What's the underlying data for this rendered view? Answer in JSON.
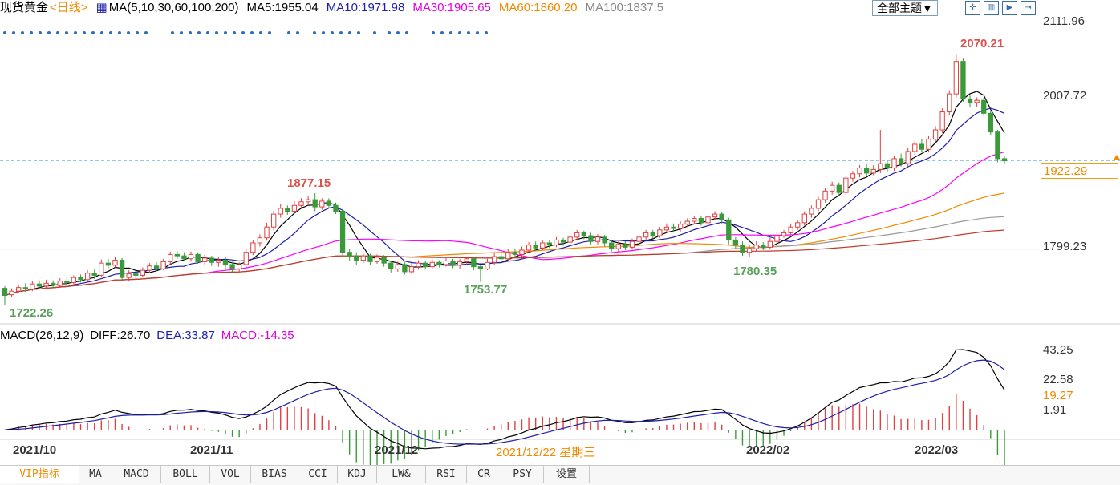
{
  "header": {
    "instrument": "现货黄金",
    "period": "<日线>",
    "ma_label": "MA(5,10,30,60,100,200)",
    "ma5": "MA5:1955.04",
    "ma10": "MA10:1971.98",
    "ma30": "MA30:1905.65",
    "ma60": "MA60:1860.20",
    "ma100": "MA100:1837.5",
    "theme_button": "全部主题▼"
  },
  "price_axis": {
    "ticks": [
      "2111.96",
      "2007.72",
      "1799.23"
    ],
    "current_price": "1922.29"
  },
  "annotations": {
    "high": "2070.21",
    "low1": "1722.26",
    "peak1": "1877.15",
    "low2": "1753.77",
    "low3": "1780.35"
  },
  "macd": {
    "title": "MACD(26,12,9)",
    "diff": "DIFF:26.70",
    "dea": "DEA:33.87",
    "macd": "MACD:-14.35",
    "ticks": [
      "43.25",
      "22.58",
      "1.91"
    ],
    "current": "19.27"
  },
  "x_axis": {
    "labels": [
      "2021/10",
      "2021/11",
      "2021/12",
      "2022/02",
      "2022/03"
    ],
    "cursor_date": "2021/12/22 星期三"
  },
  "tabs": [
    "VIP指标",
    "MA",
    "MACD",
    "BOLL",
    "VOL",
    "BIAS",
    "CCI",
    "KDJ",
    "LW&",
    "RSI",
    "CR",
    "PSY",
    "设置"
  ],
  "colors": {
    "up": "#e04040",
    "down": "#3a9a3a",
    "ma5": "#000000",
    "ma10": "#1e1eaa",
    "ma30": "#ff00ff",
    "ma60": "#f08a00",
    "ma100": "#999999",
    "ma200": "#c0392b",
    "dea": "#1e1eaa",
    "diff": "#000000"
  },
  "chart_data": {
    "type": "candlestick",
    "title": "现货黄金 <日线>",
    "series_ma": [
      {
        "name": "MA5",
        "last": 1955.04
      },
      {
        "name": "MA10",
        "last": 1971.98
      },
      {
        "name": "MA30",
        "last": 1905.65
      },
      {
        "name": "MA60",
        "last": 1860.2
      },
      {
        "name": "MA100",
        "last": 1837.5
      }
    ],
    "candles": [
      [
        1745,
        1735,
        1748,
        1722
      ],
      [
        1736,
        1741,
        1745,
        1733
      ],
      [
        1741,
        1746,
        1750,
        1738
      ],
      [
        1746,
        1744,
        1752,
        1740
      ],
      [
        1744,
        1751,
        1755,
        1741
      ],
      [
        1751,
        1748,
        1756,
        1745
      ],
      [
        1748,
        1752,
        1757,
        1744
      ],
      [
        1752,
        1749,
        1756,
        1745
      ],
      [
        1749,
        1755,
        1759,
        1746
      ],
      [
        1755,
        1753,
        1760,
        1749
      ],
      [
        1753,
        1760,
        1763,
        1750
      ],
      [
        1760,
        1757,
        1764,
        1753
      ],
      [
        1757,
        1766,
        1770,
        1754
      ],
      [
        1766,
        1763,
        1771,
        1758
      ],
      [
        1763,
        1780,
        1785,
        1760
      ],
      [
        1780,
        1777,
        1786,
        1772
      ],
      [
        1777,
        1784,
        1789,
        1774
      ],
      [
        1784,
        1760,
        1787,
        1757
      ],
      [
        1760,
        1765,
        1770,
        1755
      ],
      [
        1765,
        1763,
        1770,
        1759
      ],
      [
        1763,
        1770,
        1774,
        1760
      ],
      [
        1770,
        1776,
        1780,
        1766
      ],
      [
        1776,
        1772,
        1781,
        1769
      ],
      [
        1772,
        1782,
        1786,
        1770
      ],
      [
        1782,
        1792,
        1796,
        1778
      ],
      [
        1792,
        1790,
        1797,
        1786
      ],
      [
        1790,
        1786,
        1795,
        1783
      ],
      [
        1786,
        1792,
        1796,
        1782
      ],
      [
        1792,
        1782,
        1795,
        1779
      ],
      [
        1782,
        1787,
        1792,
        1777
      ],
      [
        1787,
        1781,
        1790,
        1776
      ],
      [
        1781,
        1784,
        1788,
        1775
      ],
      [
        1784,
        1778,
        1789,
        1771
      ],
      [
        1778,
        1772,
        1782,
        1766
      ],
      [
        1772,
        1778,
        1781,
        1766
      ],
      [
        1778,
        1795,
        1800,
        1774
      ],
      [
        1795,
        1808,
        1812,
        1791
      ],
      [
        1808,
        1815,
        1820,
        1803
      ],
      [
        1815,
        1830,
        1836,
        1811
      ],
      [
        1830,
        1848,
        1853,
        1825
      ],
      [
        1848,
        1856,
        1862,
        1843
      ],
      [
        1856,
        1852,
        1860,
        1847
      ],
      [
        1852,
        1860,
        1866,
        1849
      ],
      [
        1860,
        1865,
        1870,
        1855
      ],
      [
        1865,
        1868,
        1873,
        1860
      ],
      [
        1868,
        1858,
        1877,
        1852
      ],
      [
        1858,
        1866,
        1870,
        1854
      ],
      [
        1866,
        1860,
        1870,
        1856
      ],
      [
        1860,
        1852,
        1864,
        1848
      ],
      [
        1852,
        1795,
        1855,
        1790
      ],
      [
        1795,
        1790,
        1800,
        1783
      ],
      [
        1790,
        1784,
        1795,
        1778
      ],
      [
        1784,
        1790,
        1794,
        1780
      ],
      [
        1790,
        1782,
        1793,
        1778
      ],
      [
        1782,
        1788,
        1792,
        1779
      ],
      [
        1788,
        1780,
        1791,
        1775
      ],
      [
        1780,
        1772,
        1783,
        1767
      ],
      [
        1772,
        1778,
        1782,
        1768
      ],
      [
        1778,
        1768,
        1781,
        1764
      ],
      [
        1768,
        1775,
        1780,
        1765
      ],
      [
        1775,
        1780,
        1784,
        1771
      ],
      [
        1780,
        1775,
        1783,
        1771
      ],
      [
        1775,
        1781,
        1785,
        1772
      ],
      [
        1781,
        1778,
        1784,
        1774
      ],
      [
        1778,
        1783,
        1787,
        1775
      ],
      [
        1783,
        1777,
        1786,
        1773
      ],
      [
        1777,
        1782,
        1786,
        1772
      ],
      [
        1782,
        1786,
        1789,
        1778
      ],
      [
        1786,
        1775,
        1789,
        1770
      ],
      [
        1775,
        1772,
        1778,
        1754
      ],
      [
        1772,
        1781,
        1786,
        1770
      ],
      [
        1781,
        1789,
        1794,
        1778
      ],
      [
        1789,
        1786,
        1793,
        1782
      ],
      [
        1786,
        1795,
        1800,
        1783
      ],
      [
        1795,
        1792,
        1800,
        1788
      ],
      [
        1792,
        1798,
        1803,
        1789
      ],
      [
        1798,
        1805,
        1809,
        1794
      ],
      [
        1805,
        1801,
        1810,
        1797
      ],
      [
        1801,
        1808,
        1812,
        1798
      ],
      [
        1808,
        1805,
        1812,
        1801
      ],
      [
        1805,
        1812,
        1816,
        1802
      ],
      [
        1812,
        1809,
        1815,
        1804
      ],
      [
        1809,
        1816,
        1820,
        1806
      ],
      [
        1816,
        1822,
        1826,
        1812
      ],
      [
        1822,
        1818,
        1825,
        1813
      ],
      [
        1818,
        1810,
        1822,
        1806
      ],
      [
        1810,
        1816,
        1820,
        1806
      ],
      [
        1816,
        1808,
        1819,
        1803
      ],
      [
        1808,
        1800,
        1811,
        1796
      ],
      [
        1800,
        1806,
        1810,
        1795
      ],
      [
        1806,
        1802,
        1810,
        1798
      ],
      [
        1802,
        1810,
        1814,
        1799
      ],
      [
        1810,
        1816,
        1820,
        1806
      ],
      [
        1816,
        1822,
        1826,
        1812
      ],
      [
        1822,
        1818,
        1826,
        1814
      ],
      [
        1818,
        1826,
        1830,
        1815
      ],
      [
        1826,
        1830,
        1835,
        1822
      ],
      [
        1830,
        1828,
        1835,
        1823
      ],
      [
        1828,
        1834,
        1838,
        1824
      ],
      [
        1834,
        1838,
        1842,
        1830
      ],
      [
        1838,
        1842,
        1845,
        1834
      ],
      [
        1842,
        1836,
        1846,
        1832
      ],
      [
        1836,
        1844,
        1849,
        1833
      ],
      [
        1844,
        1848,
        1852,
        1840
      ],
      [
        1848,
        1840,
        1851,
        1835
      ],
      [
        1840,
        1812,
        1843,
        1806
      ],
      [
        1812,
        1805,
        1816,
        1800
      ],
      [
        1805,
        1795,
        1810,
        1790
      ],
      [
        1795,
        1800,
        1806,
        1788
      ],
      [
        1800,
        1805,
        1810,
        1796
      ],
      [
        1805,
        1802,
        1809,
        1798
      ],
      [
        1802,
        1810,
        1815,
        1799
      ],
      [
        1810,
        1818,
        1822,
        1806
      ],
      [
        1818,
        1822,
        1826,
        1815
      ],
      [
        1822,
        1830,
        1835,
        1819
      ],
      [
        1830,
        1836,
        1840,
        1826
      ],
      [
        1836,
        1848,
        1852,
        1832
      ],
      [
        1848,
        1856,
        1860,
        1843
      ],
      [
        1856,
        1868,
        1872,
        1852
      ],
      [
        1868,
        1880,
        1884,
        1864
      ],
      [
        1880,
        1888,
        1893,
        1875
      ],
      [
        1888,
        1878,
        1892,
        1874
      ],
      [
        1878,
        1898,
        1902,
        1875
      ],
      [
        1898,
        1904,
        1908,
        1893
      ],
      [
        1904,
        1912,
        1916,
        1899
      ],
      [
        1912,
        1905,
        1918,
        1900
      ],
      [
        1905,
        1910,
        1916,
        1902
      ],
      [
        1910,
        1918,
        1965,
        1905
      ],
      [
        1918,
        1912,
        1922,
        1907
      ],
      [
        1912,
        1925,
        1929,
        1908
      ],
      [
        1925,
        1918,
        1932,
        1914
      ],
      [
        1918,
        1935,
        1940,
        1914
      ],
      [
        1935,
        1945,
        1950,
        1930
      ],
      [
        1945,
        1938,
        1952,
        1934
      ],
      [
        1938,
        1952,
        1956,
        1934
      ],
      [
        1952,
        1965,
        1970,
        1948
      ],
      [
        1965,
        1990,
        1995,
        1960
      ],
      [
        1990,
        2015,
        2020,
        1985
      ],
      [
        2015,
        2060,
        2070,
        2010
      ],
      [
        2060,
        2008,
        2065,
        2004
      ],
      [
        2008,
        2003,
        2014,
        1996
      ],
      [
        2003,
        2006,
        2010,
        1997
      ],
      [
        2006,
        1988,
        2010,
        1984
      ],
      [
        1988,
        1962,
        1992,
        1958
      ],
      [
        1962,
        1925,
        1965,
        1920
      ],
      [
        1925,
        1922,
        1929,
        1918
      ]
    ],
    "macd_diff_last": 26.7,
    "macd_dea_last": 33.87,
    "macd_hist_last": -14.35,
    "ylim": [
      1700,
      2111.96
    ],
    "ylim_macd": [
      -5,
      45
    ]
  }
}
